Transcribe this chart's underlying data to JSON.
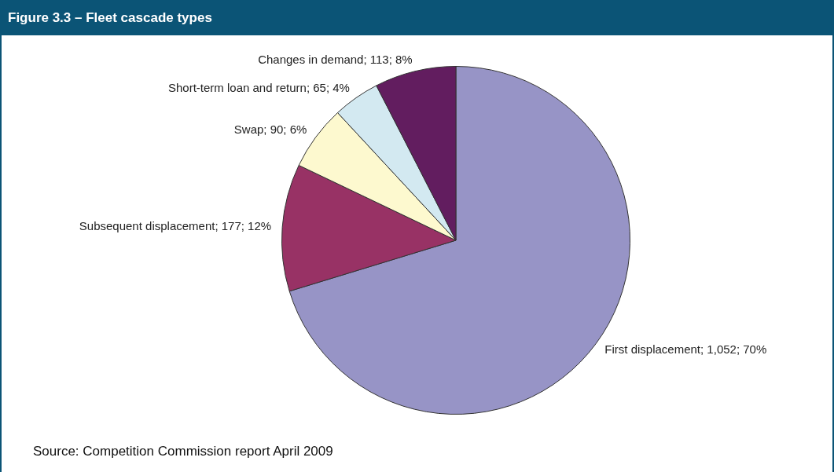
{
  "chart_data": {
    "type": "pie",
    "title": "Figure 3.3 – Fleet cascade types",
    "categories": [
      "First displacement",
      "Subsequent displacement",
      "Swap",
      "Short-term loan and return",
      "Changes in demand"
    ],
    "values": [
      1052,
      177,
      90,
      65,
      113
    ],
    "value_labels": [
      "1,052; 70%",
      "177; 12%",
      "90; 6%",
      "65; 4%",
      "113; 8%"
    ],
    "colors": [
      "#9794c6",
      "#983265",
      "#fdf9cf",
      "#d3e9f1",
      "#621d5f"
    ],
    "legend": false,
    "annotations": [
      "Source: Competition Commission report April 2009"
    ]
  }
}
